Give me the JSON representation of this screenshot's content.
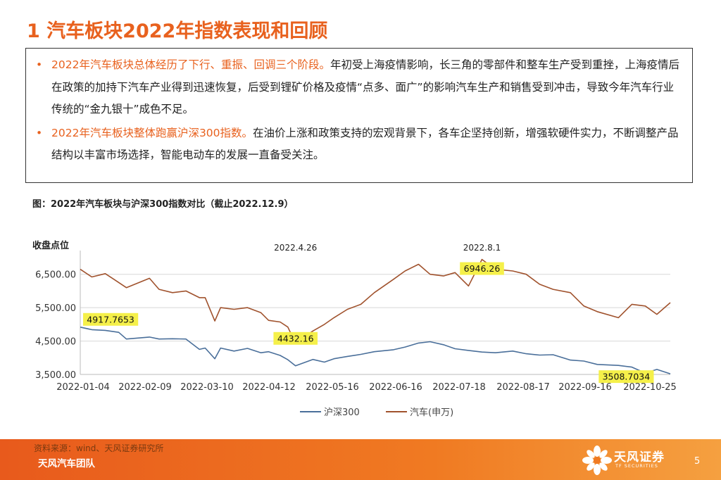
{
  "page": {
    "title": "1 汽车板块2022年指数表现和回顾",
    "page_number": "5"
  },
  "summary": {
    "bullets": [
      {
        "dot": "•",
        "highlight": "2022年汽车板块总体经历了下行、重振、回调三个阶段。",
        "text": "年初受上海疫情影响，长三角的零部件和整车生产受到重挫，上海疫情后在政策的加持下汽车产业得到迅速恢复，后受到锂矿价格及疫情“点多、面广”的影响汽车生产和销售受到冲击，导致今年汽车行业传统的“金九银十”成色不足。"
      },
      {
        "dot": "•",
        "highlight": "2022年汽车板块整体跑赢沪深300指数。",
        "text": "在油价上涨和政策支持的宏观背景下，各车企坚持创新，增强软硬件实力，不断调整产品结构以丰富市场选择，智能电动车的发展一直备受关注。"
      }
    ]
  },
  "figure": {
    "caption": "图：2022年汽车板块与沪深300指数对比（截止2022.12.9）"
  },
  "chart_data": {
    "type": "line",
    "title": "",
    "ylabel": "收盘点位",
    "xlabel": "",
    "ylim": [
      3500,
      7000
    ],
    "xlim": [
      "2022-01-04",
      "2022-11-07"
    ],
    "yticks": [
      "3,500.00",
      "4,500.00",
      "5,500.00",
      "6,500.00"
    ],
    "ytick_values": [
      3500,
      4500,
      5500,
      6500
    ],
    "xticks": [
      "2022-01-04",
      "2022-02-09",
      "2022-03-10",
      "2022-04-12",
      "2022-05-16",
      "2022-06-16",
      "2022-07-18",
      "2022-08-17",
      "2022-09-16",
      "2022-10-25"
    ],
    "grid": true,
    "legend_position": "bottom",
    "colors": {
      "hs300": "#4a6f9a",
      "auto": "#a0522d",
      "callout_bg": "#f5f04a"
    },
    "series": [
      {
        "name": "沪深300",
        "key": "hs300",
        "points": [
          [
            "2022-01-04",
            4917
          ],
          [
            "2022-01-10",
            4840
          ],
          [
            "2022-01-17",
            4820
          ],
          [
            "2022-01-24",
            4760
          ],
          [
            "2022-01-28",
            4560
          ],
          [
            "2022-02-09",
            4620
          ],
          [
            "2022-02-14",
            4560
          ],
          [
            "2022-02-21",
            4570
          ],
          [
            "2022-02-28",
            4560
          ],
          [
            "2022-03-07",
            4250
          ],
          [
            "2022-03-10",
            4290
          ],
          [
            "2022-03-15",
            3970
          ],
          [
            "2022-03-18",
            4290
          ],
          [
            "2022-03-25",
            4200
          ],
          [
            "2022-04-01",
            4280
          ],
          [
            "2022-04-08",
            4150
          ],
          [
            "2022-04-12",
            4180
          ],
          [
            "2022-04-18",
            4070
          ],
          [
            "2022-04-22",
            3940
          ],
          [
            "2022-04-26",
            3760
          ],
          [
            "2022-05-05",
            3950
          ],
          [
            "2022-05-11",
            3870
          ],
          [
            "2022-05-16",
            3970
          ],
          [
            "2022-05-23",
            4040
          ],
          [
            "2022-05-30",
            4100
          ],
          [
            "2022-06-06",
            4180
          ],
          [
            "2022-06-16",
            4240
          ],
          [
            "2022-06-22",
            4320
          ],
          [
            "2022-06-29",
            4440
          ],
          [
            "2022-07-05",
            4480
          ],
          [
            "2022-07-12",
            4390
          ],
          [
            "2022-07-18",
            4270
          ],
          [
            "2022-07-25",
            4220
          ],
          [
            "2022-08-01",
            4170
          ],
          [
            "2022-08-08",
            4150
          ],
          [
            "2022-08-17",
            4200
          ],
          [
            "2022-08-24",
            4120
          ],
          [
            "2022-08-31",
            4080
          ],
          [
            "2022-09-07",
            4090
          ],
          [
            "2022-09-16",
            3930
          ],
          [
            "2022-09-23",
            3900
          ],
          [
            "2022-09-30",
            3800
          ],
          [
            "2022-10-11",
            3770
          ],
          [
            "2022-10-18",
            3720
          ],
          [
            "2022-10-25",
            3540
          ],
          [
            "2022-10-31",
            3650
          ],
          [
            "2022-11-07",
            3520
          ]
        ]
      },
      {
        "name": "汽车(申万)",
        "key": "auto",
        "points": [
          [
            "2022-01-04",
            6650
          ],
          [
            "2022-01-10",
            6420
          ],
          [
            "2022-01-17",
            6520
          ],
          [
            "2022-01-21",
            6370
          ],
          [
            "2022-01-28",
            6100
          ],
          [
            "2022-02-09",
            6380
          ],
          [
            "2022-02-14",
            6050
          ],
          [
            "2022-02-21",
            5950
          ],
          [
            "2022-02-28",
            6000
          ],
          [
            "2022-03-07",
            5800
          ],
          [
            "2022-03-10",
            5800
          ],
          [
            "2022-03-15",
            5100
          ],
          [
            "2022-03-18",
            5500
          ],
          [
            "2022-03-25",
            5450
          ],
          [
            "2022-04-01",
            5500
          ],
          [
            "2022-04-08",
            5350
          ],
          [
            "2022-04-12",
            5120
          ],
          [
            "2022-04-18",
            5070
          ],
          [
            "2022-04-22",
            4920
          ],
          [
            "2022-04-26",
            4432
          ],
          [
            "2022-05-05",
            4800
          ],
          [
            "2022-05-11",
            5000
          ],
          [
            "2022-05-16",
            5200
          ],
          [
            "2022-05-23",
            5450
          ],
          [
            "2022-05-30",
            5600
          ],
          [
            "2022-06-06",
            5950
          ],
          [
            "2022-06-16",
            6350
          ],
          [
            "2022-06-22",
            6600
          ],
          [
            "2022-06-29",
            6800
          ],
          [
            "2022-07-05",
            6500
          ],
          [
            "2022-07-12",
            6450
          ],
          [
            "2022-07-18",
            6550
          ],
          [
            "2022-07-25",
            6150
          ],
          [
            "2022-08-01",
            6946
          ],
          [
            "2022-08-08",
            6650
          ],
          [
            "2022-08-17",
            6600
          ],
          [
            "2022-08-24",
            6500
          ],
          [
            "2022-08-31",
            6200
          ],
          [
            "2022-09-07",
            6050
          ],
          [
            "2022-09-16",
            5950
          ],
          [
            "2022-09-23",
            5550
          ],
          [
            "2022-09-30",
            5380
          ],
          [
            "2022-10-11",
            5200
          ],
          [
            "2022-10-18",
            5600
          ],
          [
            "2022-10-25",
            5550
          ],
          [
            "2022-10-31",
            5300
          ],
          [
            "2022-11-07",
            5650
          ]
        ]
      }
    ],
    "annotations": [
      {
        "label": "2022.4.26",
        "date": "2022-04-26"
      },
      {
        "label": "2022.8.1",
        "date": "2022-08-01"
      }
    ],
    "callouts": [
      {
        "text": "4917.7653",
        "series": "hs300",
        "date": "2022-01-04"
      },
      {
        "text": "4432.16",
        "series": "auto",
        "date": "2022-04-26"
      },
      {
        "text": "6946.26",
        "series": "auto",
        "date": "2022-08-01"
      },
      {
        "text": "3508.7034",
        "series": "hs300",
        "date": "2022-10-25"
      }
    ]
  },
  "footer": {
    "source": "资料来源：wind、天风证券研究所",
    "team": "天风汽车团队",
    "logo_text": "天风证券",
    "logo_sub": "TF SECURITIES"
  }
}
